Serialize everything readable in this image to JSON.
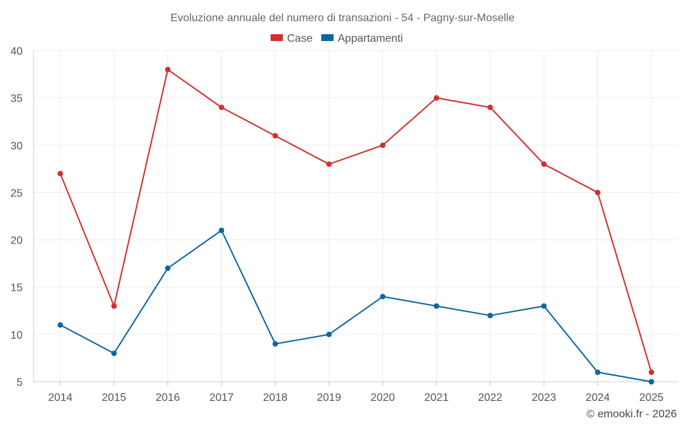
{
  "chart_data": {
    "type": "line",
    "title": "Evoluzione annuale del numero di transazioni - 54 - Pagny-sur-Moselle",
    "xlabel": "",
    "ylabel": "",
    "categories": [
      "2014",
      "2015",
      "2016",
      "2017",
      "2018",
      "2019",
      "2020",
      "2021",
      "2022",
      "2023",
      "2024",
      "2025"
    ],
    "ylim": [
      5,
      40
    ],
    "yticks": [
      5,
      10,
      15,
      20,
      25,
      30,
      35,
      40
    ],
    "grid": true,
    "legend_position": "top-center",
    "series": [
      {
        "name": "Case",
        "color": "#d32f2f",
        "values": [
          27,
          13,
          38,
          34,
          31,
          28,
          30,
          35,
          34,
          28,
          25,
          6
        ]
      },
      {
        "name": "Appartamenti",
        "color": "#0b67a0",
        "values": [
          11,
          8,
          17,
          21,
          9,
          10,
          14,
          13,
          12,
          13,
          6,
          5
        ]
      }
    ],
    "credit": "© emooki.fr - 2026"
  }
}
